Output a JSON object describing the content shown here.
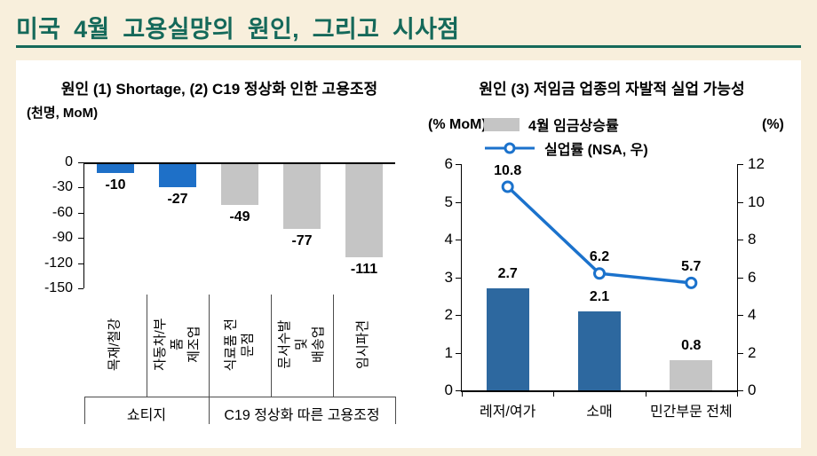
{
  "page": {
    "title": "미국 4월 고용실망의 원인, 그리고 시사점"
  },
  "colors": {
    "teal": "#15695a",
    "cream": "#f8efdc",
    "blue": "#1e70c8",
    "bar_blue": "#2d689f",
    "line_blue": "#1b72cc",
    "gray": "#c5c5c5"
  },
  "chart_data": [
    {
      "type": "bar",
      "title": "원인 (1) Shortage, (2) C19 정상화 인한 고용조정",
      "unit_label": "(천명, MoM)",
      "categories": [
        "목재/철강",
        "자동차/부품\n제조업",
        "식료품 전문점",
        "문서수발 및\n배송업",
        "임시파견"
      ],
      "values": [
        -10,
        -27,
        -49,
        -77,
        -111
      ],
      "bar_colors": [
        "blue",
        "blue",
        "gray",
        "gray",
        "gray"
      ],
      "ylim": [
        -150,
        0
      ],
      "yticks": [
        0,
        -30,
        -60,
        -90,
        -120,
        -150
      ],
      "group_labels": [
        {
          "label": "쇼티지",
          "span": [
            0,
            1
          ]
        },
        {
          "label": "C19 정상화 따른 고용조정",
          "span": [
            2,
            4
          ]
        }
      ]
    },
    {
      "type": "bar+line",
      "title": "원인 (3)  저임금 업종의 자발적 실업 가능성",
      "left_axis_label": "(% MoM)",
      "right_axis_label": "(%)",
      "categories": [
        "레저/여가",
        "소매",
        "민간부문 전체"
      ],
      "series": [
        {
          "name": "4월 임금상승률",
          "type": "bar",
          "axis": "left",
          "values": [
            2.7,
            2.1,
            0.8
          ],
          "colors": [
            "blue",
            "blue",
            "gray"
          ]
        },
        {
          "name": "실업률 (NSA, 우)",
          "type": "line",
          "axis": "right",
          "values": [
            10.8,
            6.2,
            5.7
          ]
        }
      ],
      "left_ylim": [
        0,
        6
      ],
      "left_yticks": [
        0,
        1,
        2,
        3,
        4,
        5,
        6
      ],
      "right_ylim": [
        0,
        12
      ],
      "right_yticks": [
        0,
        2,
        4,
        6,
        8,
        10,
        12
      ],
      "legend_position": "top",
      "grid": false
    }
  ]
}
